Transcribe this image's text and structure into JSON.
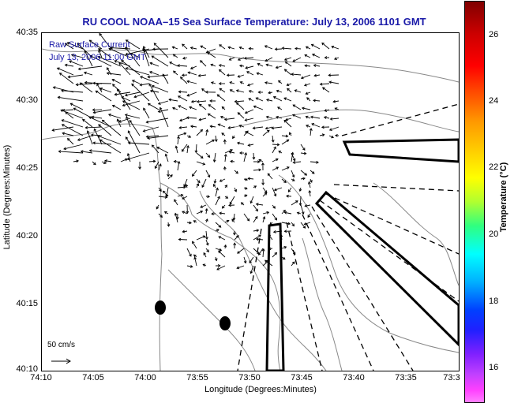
{
  "title": "RU COOL  NOAA–15  Sea Surface Temperature:  July 13, 2006 1101 GMT",
  "legend": {
    "line1": "Raw Surface Current",
    "line2": "July 13, 2006 11:00 GMT"
  },
  "scale": {
    "label": "50 cm/s"
  },
  "axes": {
    "xlabel": "Longitude (Degrees:Minutes)",
    "ylabel": "Latitude (Degrees:Minutes)",
    "xticks": [
      "74:10",
      "74:05",
      "74:00",
      "73:55",
      "73:50",
      "73:45",
      "73:40",
      "73:35",
      "73:3"
    ],
    "yticks": [
      "40:35",
      "40:30",
      "40:25",
      "40:20",
      "40:15",
      "40:10"
    ]
  },
  "colorbar": {
    "title": "Temperature (°C)",
    "ticks": [
      "26",
      "24",
      "22",
      "20",
      "18",
      "16"
    ],
    "range": [
      15,
      27
    ]
  },
  "colors": {
    "title": "#1a1aa8",
    "land_contour": "#888888",
    "vector": "#000000"
  }
}
